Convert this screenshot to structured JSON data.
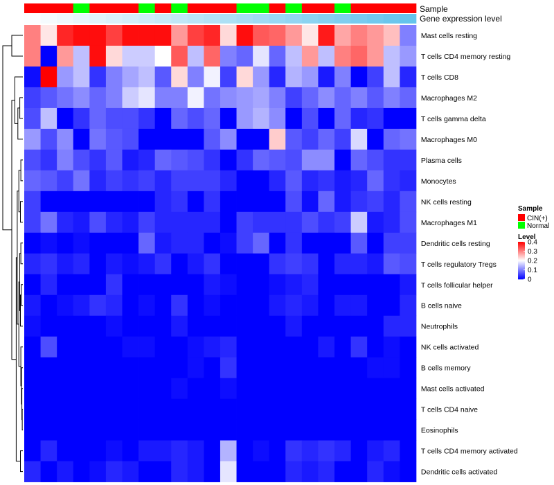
{
  "chart_data": {
    "type": "heatmap",
    "annotations": {
      "sample": {
        "title": "Sample",
        "categories": [
          "CIN(+)",
          "Normal"
        ],
        "colors": {
          "CIN(+)": "#ff0000",
          "Normal": "#00ff00"
        },
        "values": [
          "CIN(+)",
          "CIN(+)",
          "CIN(+)",
          "Normal",
          "CIN(+)",
          "CIN(+)",
          "CIN(+)",
          "Normal",
          "CIN(+)",
          "Normal",
          "CIN(+)",
          "CIN(+)",
          "CIN(+)",
          "Normal",
          "Normal",
          "CIN(+)",
          "Normal",
          "CIN(+)",
          "CIN(+)",
          "Normal",
          "CIN(+)",
          "CIN(+)",
          "CIN(+)",
          "CIN(+)"
        ]
      },
      "gene_expression": {
        "title": "Gene expression level",
        "values": [
          0.02,
          0.06,
          0.1,
          0.14,
          0.18,
          0.22,
          0.26,
          0.3,
          0.34,
          0.38,
          0.42,
          0.46,
          0.5,
          0.54,
          0.58,
          0.62,
          0.66,
          0.7,
          0.74,
          0.78,
          0.82,
          0.86,
          0.9,
          0.94
        ]
      }
    },
    "rows": [
      "Mast cells resting",
      "T cells CD4 memory resting",
      "T cells CD8",
      "Macrophages M2",
      "T cells gamma delta",
      "Macrophages M0",
      "Plasma cells",
      "Monocytes",
      "NK cells resting",
      "Macrophages M1",
      "Dendritic cells resting",
      "T cells regulatory  Tregs",
      "T cells follicular helper",
      "B cells naive",
      "Neutrophils",
      "NK cells activated",
      "B cells memory",
      "Mast cells activated",
      "T cells CD4 naive",
      "Eosinophils",
      "T cells CD4 memory activated",
      "Dendritic cells activated"
    ],
    "values": [
      [
        0.3,
        0.22,
        0.37,
        0.39,
        0.39,
        0.35,
        0.39,
        0.39,
        0.39,
        0.28,
        0.35,
        0.37,
        0.23,
        0.39,
        0.33,
        0.32,
        0.28,
        0.22,
        0.38,
        0.27,
        0.3,
        0.28,
        0.25,
        0.1
      ],
      [
        0.3,
        0.0,
        0.28,
        0.15,
        0.39,
        0.23,
        0.16,
        0.16,
        0.2,
        0.33,
        0.15,
        0.32,
        0.1,
        0.08,
        0.18,
        0.08,
        0.15,
        0.28,
        0.15,
        0.3,
        0.32,
        0.28,
        0.15,
        0.12
      ],
      [
        0.01,
        0.4,
        0.12,
        0.15,
        0.04,
        0.1,
        0.13,
        0.15,
        0.07,
        0.23,
        0.1,
        0.19,
        0.05,
        0.23,
        0.12,
        0.03,
        0.14,
        0.12,
        0.02,
        0.1,
        0.0,
        0.05,
        0.15,
        0.03
      ],
      [
        0.05,
        0.07,
        0.09,
        0.11,
        0.08,
        0.1,
        0.16,
        0.18,
        0.1,
        0.1,
        0.19,
        0.09,
        0.11,
        0.12,
        0.13,
        0.1,
        0.05,
        0.08,
        0.11,
        0.08,
        0.1,
        0.07,
        0.1,
        0.08
      ],
      [
        0.06,
        0.15,
        0.0,
        0.04,
        0.08,
        0.06,
        0.06,
        0.04,
        0.0,
        0.08,
        0.06,
        0.08,
        0.0,
        0.12,
        0.14,
        0.11,
        0.0,
        0.06,
        0.0,
        0.08,
        0.03,
        0.04,
        0.0,
        0.0
      ],
      [
        0.12,
        0.06,
        0.11,
        0.0,
        0.09,
        0.07,
        0.06,
        0.0,
        0.0,
        0.0,
        0.0,
        0.07,
        0.11,
        0.0,
        0.0,
        0.24,
        0.07,
        0.05,
        0.08,
        0.05,
        0.17,
        0.0,
        0.08,
        0.09
      ],
      [
        0.06,
        0.04,
        0.1,
        0.06,
        0.04,
        0.07,
        0.02,
        0.03,
        0.08,
        0.07,
        0.06,
        0.04,
        0.0,
        0.04,
        0.08,
        0.07,
        0.06,
        0.11,
        0.11,
        0.0,
        0.08,
        0.06,
        0.04,
        0.04
      ],
      [
        0.08,
        0.07,
        0.05,
        0.09,
        0.03,
        0.05,
        0.04,
        0.05,
        0.03,
        0.05,
        0.05,
        0.05,
        0.03,
        0.0,
        0.0,
        0.03,
        0.07,
        0.03,
        0.04,
        0.02,
        0.03,
        0.08,
        0.04,
        0.03
      ],
      [
        0.05,
        0.0,
        0.0,
        0.0,
        0.0,
        0.0,
        0.0,
        0.0,
        0.03,
        0.04,
        0.0,
        0.04,
        0.0,
        0.0,
        0.0,
        0.0,
        0.06,
        0.01,
        0.08,
        0.02,
        0.04,
        0.05,
        0.03,
        0.06
      ],
      [
        0.05,
        0.09,
        0.03,
        0.02,
        0.06,
        0.03,
        0.02,
        0.05,
        0.03,
        0.03,
        0.03,
        0.03,
        0.0,
        0.05,
        0.04,
        0.04,
        0.04,
        0.06,
        0.04,
        0.05,
        0.16,
        0.02,
        0.03,
        0.06
      ],
      [
        0.0,
        0.01,
        0.0,
        0.01,
        0.0,
        0.0,
        0.0,
        0.08,
        0.02,
        0.03,
        0.03,
        0.0,
        0.01,
        0.05,
        0.08,
        0.0,
        0.04,
        0.0,
        0.0,
        0.0,
        0.07,
        0.0,
        0.05,
        0.05
      ],
      [
        0.03,
        0.04,
        0.02,
        0.03,
        0.0,
        0.02,
        0.01,
        0.02,
        0.04,
        0.0,
        0.02,
        0.04,
        0.0,
        0.0,
        0.0,
        0.04,
        0.05,
        0.04,
        0.0,
        0.03,
        0.03,
        0.02,
        0.07,
        0.06
      ],
      [
        0.0,
        0.03,
        0.0,
        0.0,
        0.0,
        0.04,
        0.0,
        0.0,
        0.0,
        0.0,
        0.0,
        0.02,
        0.01,
        0.0,
        0.0,
        0.01,
        0.02,
        0.03,
        0.0,
        0.0,
        0.0,
        0.0,
        0.0,
        0.02
      ],
      [
        0.02,
        0.0,
        0.01,
        0.02,
        0.04,
        0.03,
        0.0,
        0.01,
        0.0,
        0.04,
        0.0,
        0.01,
        0.0,
        0.0,
        0.0,
        0.02,
        0.03,
        0.02,
        0.0,
        0.02,
        0.02,
        0.0,
        0.0,
        0.03
      ],
      [
        0.01,
        0.0,
        0.0,
        0.0,
        0.0,
        0.01,
        0.0,
        0.0,
        0.0,
        0.02,
        0.0,
        0.0,
        0.0,
        0.0,
        0.0,
        0.0,
        0.02,
        0.0,
        0.0,
        0.0,
        0.0,
        0.0,
        0.03,
        0.03
      ],
      [
        0.0,
        0.06,
        0.0,
        0.0,
        0.0,
        0.0,
        0.01,
        0.01,
        0.0,
        0.0,
        0.01,
        0.02,
        0.03,
        0.0,
        0.0,
        0.0,
        0.0,
        0.0,
        0.02,
        0.0,
        0.04,
        0.0,
        0.01,
        0.0
      ],
      [
        0.0,
        0.0,
        0.0,
        0.0,
        0.0,
        0.0,
        0.0,
        0.0,
        0.0,
        0.0,
        0.01,
        0.0,
        0.04,
        0.0,
        0.0,
        0.0,
        0.0,
        0.0,
        0.0,
        0.0,
        0.0,
        0.01,
        0.01,
        0.0
      ],
      [
        0.0,
        0.0,
        0.0,
        0.0,
        0.0,
        0.0,
        0.0,
        0.0,
        0.0,
        0.01,
        0.0,
        0.0,
        0.01,
        0.0,
        0.0,
        0.0,
        0.0,
        0.0,
        0.0,
        0.0,
        0.0,
        0.0,
        0.0,
        0.0
      ],
      [
        0.0,
        0.0,
        0.0,
        0.0,
        0.0,
        0.0,
        0.0,
        0.0,
        0.0,
        0.0,
        0.0,
        0.0,
        0.0,
        0.0,
        0.0,
        0.0,
        0.0,
        0.0,
        0.0,
        0.0,
        0.0,
        0.0,
        0.0,
        0.0
      ],
      [
        0.0,
        0.0,
        0.0,
        0.0,
        0.0,
        0.0,
        0.0,
        0.0,
        0.0,
        0.0,
        0.0,
        0.0,
        0.0,
        0.0,
        0.0,
        0.0,
        0.0,
        0.0,
        0.0,
        0.0,
        0.0,
        0.0,
        0.0,
        0.0
      ],
      [
        0.0,
        0.03,
        0.0,
        0.0,
        0.0,
        0.01,
        0.0,
        0.02,
        0.02,
        0.03,
        0.02,
        0.0,
        0.14,
        0.0,
        0.01,
        0.0,
        0.04,
        0.03,
        0.04,
        0.03,
        0.0,
        0.02,
        0.03,
        0.0
      ],
      [
        0.03,
        0.0,
        0.02,
        0.0,
        0.01,
        0.03,
        0.02,
        0.0,
        0.0,
        0.03,
        0.02,
        0.0,
        0.18,
        0.0,
        0.0,
        0.0,
        0.03,
        0.02,
        0.03,
        0.0,
        0.0,
        0.03,
        0.01,
        0.0
      ]
    ],
    "legend": {
      "sample_title": "Sample",
      "level_title": "Level",
      "level_ticks": [
        "0.4",
        "0.3",
        "0.2",
        "0.1",
        "0"
      ],
      "level_range": [
        0,
        0.4
      ]
    },
    "dendrogram": "row clustering tree (left side)",
    "colors": {
      "low": "#0000ff",
      "mid": "#ffffff",
      "high": "#ff0000"
    }
  }
}
